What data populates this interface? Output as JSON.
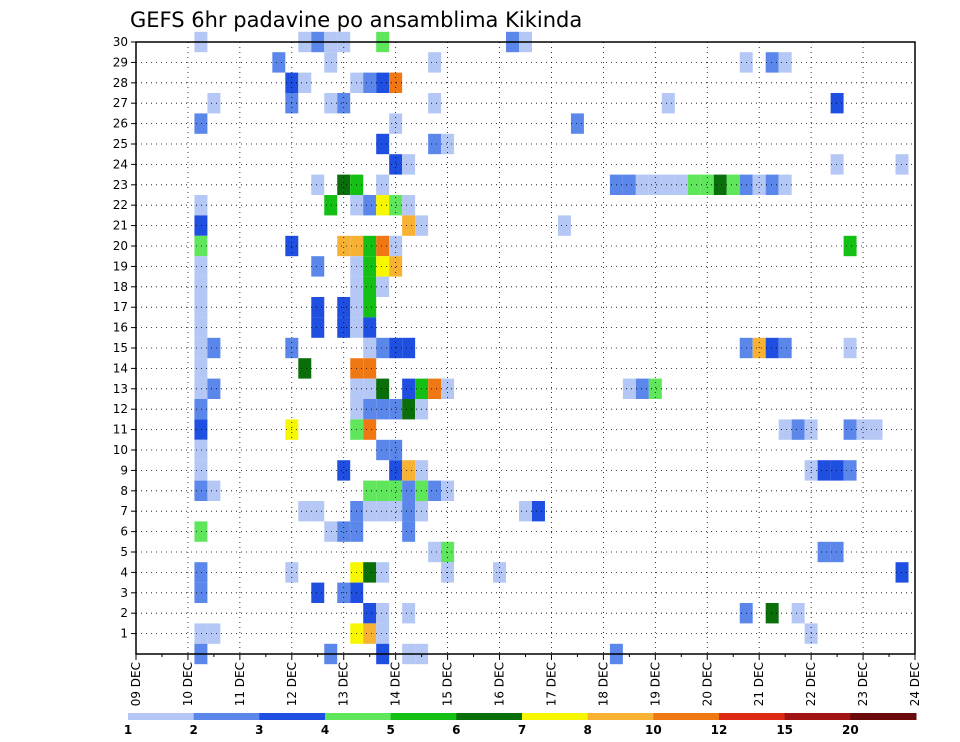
{
  "chart_data": {
    "type": "heatmap",
    "title": "GEFS 6hr padavine po ansamblima Kikinda",
    "xlabel": "",
    "ylabel": "",
    "x_tick_labels": [
      "09 DEC",
      "10 DEC",
      "11 DEC",
      "12 DEC",
      "13 DEC",
      "14 DEC",
      "15 DEC",
      "16 DEC",
      "17 DEC",
      "18 DEC",
      "19 DEC",
      "20 DEC",
      "21 DEC",
      "22 DEC",
      "23 DEC",
      "24 DEC"
    ],
    "xlim": [
      0,
      15
    ],
    "y_tick_labels": [
      "1",
      "2",
      "3",
      "4",
      "5",
      "6",
      "7",
      "8",
      "9",
      "10",
      "11",
      "12",
      "13",
      "14",
      "15",
      "16",
      "17",
      "18",
      "19",
      "20",
      "21",
      "22",
      "23",
      "24",
      "25",
      "26",
      "27",
      "28",
      "29",
      "30"
    ],
    "ylim": [
      0,
      30
    ],
    "grid": true,
    "colorbar": {
      "levels": [
        "1",
        "2",
        "3",
        "4",
        "5",
        "6",
        "7",
        "8",
        "10",
        "12",
        "15",
        "20"
      ],
      "colors": [
        "#b4c7f5",
        "#5b87eb",
        "#1f4fe0",
        "#5fe65a",
        "#14c014",
        "#0a6e0a",
        "#f7f700",
        "#f7b234",
        "#f07814",
        "#dc2a14",
        "#a01414",
        "#6a0a0a"
      ]
    },
    "cells": [
      [
        1.25,
        30,
        1
      ],
      [
        3.25,
        30,
        1
      ],
      [
        3.5,
        30,
        2
      ],
      [
        3.75,
        30,
        1
      ],
      [
        4,
        30,
        1
      ],
      [
        4.75,
        30,
        4
      ],
      [
        7.25,
        30,
        2
      ],
      [
        7.5,
        30,
        1
      ],
      [
        2.75,
        29,
        2
      ],
      [
        3.75,
        29,
        1
      ],
      [
        5.75,
        29,
        1
      ],
      [
        11.75,
        29,
        1
      ],
      [
        12.25,
        29,
        2
      ],
      [
        12.5,
        29,
        1
      ],
      [
        3,
        28,
        3
      ],
      [
        3.25,
        28,
        1
      ],
      [
        4.25,
        28,
        1
      ],
      [
        4.5,
        28,
        2
      ],
      [
        4.75,
        28,
        3
      ],
      [
        5,
        28,
        9
      ],
      [
        1.5,
        27,
        1
      ],
      [
        3,
        27,
        2
      ],
      [
        3.75,
        27,
        1
      ],
      [
        4,
        27,
        2
      ],
      [
        5.75,
        27,
        1
      ],
      [
        10.25,
        27,
        1
      ],
      [
        13.5,
        27,
        3
      ],
      [
        1.25,
        26,
        2
      ],
      [
        5,
        26,
        1
      ],
      [
        8.5,
        26,
        2
      ],
      [
        4.75,
        25,
        3
      ],
      [
        5.75,
        25,
        2
      ],
      [
        6,
        25,
        1
      ],
      [
        5,
        24,
        3
      ],
      [
        5.25,
        24,
        1
      ],
      [
        13.5,
        24,
        1
      ],
      [
        14.75,
        24,
        1
      ],
      [
        3.5,
        23,
        1
      ],
      [
        4,
        23,
        6
      ],
      [
        4.25,
        23,
        5
      ],
      [
        4.75,
        23,
        1
      ],
      [
        9.25,
        23,
        2
      ],
      [
        9.5,
        23,
        2
      ],
      [
        9.75,
        23,
        1
      ],
      [
        10,
        23,
        1
      ],
      [
        10.25,
        23,
        1
      ],
      [
        10.5,
        23,
        1
      ],
      [
        10.75,
        23,
        4
      ],
      [
        11,
        23,
        4
      ],
      [
        11.25,
        23,
        6
      ],
      [
        11.5,
        23,
        4
      ],
      [
        11.75,
        23,
        2
      ],
      [
        12,
        23,
        1
      ],
      [
        12.25,
        23,
        2
      ],
      [
        12.5,
        23,
        1
      ],
      [
        1.25,
        22,
        1
      ],
      [
        3.75,
        22,
        5
      ],
      [
        4.25,
        22,
        1
      ],
      [
        4.5,
        22,
        2
      ],
      [
        4.75,
        22,
        7
      ],
      [
        5,
        22,
        4
      ],
      [
        5.25,
        22,
        1
      ],
      [
        1.25,
        21,
        3
      ],
      [
        5.25,
        21,
        8
      ],
      [
        5.5,
        21,
        1
      ],
      [
        8.25,
        21,
        1
      ],
      [
        1.25,
        20,
        4
      ],
      [
        3,
        20,
        3
      ],
      [
        4,
        20,
        8
      ],
      [
        4.25,
        20,
        8
      ],
      [
        4.5,
        20,
        5
      ],
      [
        4.75,
        20,
        9
      ],
      [
        5,
        20,
        1
      ],
      [
        13.75,
        20,
        5
      ],
      [
        1.25,
        19,
        1
      ],
      [
        3.5,
        19,
        2
      ],
      [
        4.25,
        19,
        1
      ],
      [
        4.5,
        19,
        5
      ],
      [
        4.75,
        19,
        7
      ],
      [
        5,
        19,
        8
      ],
      [
        1.25,
        18,
        1
      ],
      [
        4.25,
        18,
        1
      ],
      [
        4.5,
        18,
        5
      ],
      [
        4.75,
        18,
        1
      ],
      [
        1.25,
        17,
        1
      ],
      [
        3.5,
        17,
        3
      ],
      [
        4,
        17,
        3
      ],
      [
        4.25,
        17,
        1
      ],
      [
        4.5,
        17,
        5
      ],
      [
        1.25,
        16,
        1
      ],
      [
        3.5,
        16,
        3
      ],
      [
        4,
        16,
        3
      ],
      [
        4.25,
        16,
        1
      ],
      [
        4.5,
        16,
        3
      ],
      [
        1.25,
        15,
        1
      ],
      [
        1.5,
        15,
        2
      ],
      [
        3,
        15,
        2
      ],
      [
        4.5,
        15,
        1
      ],
      [
        4.75,
        15,
        2
      ],
      [
        5,
        15,
        3
      ],
      [
        5.25,
        15,
        3
      ],
      [
        11.75,
        15,
        2
      ],
      [
        12,
        15,
        8
      ],
      [
        12.25,
        15,
        3
      ],
      [
        12.5,
        15,
        2
      ],
      [
        13.75,
        15,
        1
      ],
      [
        1.25,
        14,
        1
      ],
      [
        3.25,
        14,
        6
      ],
      [
        4.25,
        14,
        9
      ],
      [
        4.5,
        14,
        9
      ],
      [
        1.25,
        13,
        1
      ],
      [
        1.5,
        13,
        2
      ],
      [
        4.25,
        13,
        1
      ],
      [
        4.5,
        13,
        1
      ],
      [
        4.75,
        13,
        6
      ],
      [
        5.25,
        13,
        3
      ],
      [
        5.5,
        13,
        5
      ],
      [
        5.75,
        13,
        9
      ],
      [
        6,
        13,
        1
      ],
      [
        9.5,
        13,
        1
      ],
      [
        9.75,
        13,
        2
      ],
      [
        10,
        13,
        4
      ],
      [
        1.25,
        12,
        2
      ],
      [
        4.25,
        12,
        1
      ],
      [
        4.5,
        12,
        2
      ],
      [
        4.75,
        12,
        2
      ],
      [
        5,
        12,
        2
      ],
      [
        5.25,
        12,
        6
      ],
      [
        5.5,
        12,
        1
      ],
      [
        1.25,
        11,
        3
      ],
      [
        3,
        11,
        7
      ],
      [
        4.25,
        11,
        4
      ],
      [
        4.5,
        11,
        9
      ],
      [
        12.5,
        11,
        1
      ],
      [
        12.75,
        11,
        2
      ],
      [
        13,
        11,
        1
      ],
      [
        13.75,
        11,
        2
      ],
      [
        14,
        11,
        1
      ],
      [
        14.25,
        11,
        1
      ],
      [
        1.25,
        10,
        1
      ],
      [
        4.75,
        10,
        2
      ],
      [
        5,
        10,
        2
      ],
      [
        1.25,
        9,
        1
      ],
      [
        4,
        9,
        3
      ],
      [
        5,
        9,
        3
      ],
      [
        5.25,
        9,
        8
      ],
      [
        5.5,
        9,
        1
      ],
      [
        13,
        9,
        1
      ],
      [
        13.25,
        9,
        3
      ],
      [
        13.5,
        9,
        3
      ],
      [
        13.75,
        9,
        2
      ],
      [
        1.25,
        8,
        2
      ],
      [
        1.5,
        8,
        1
      ],
      [
        4.5,
        8,
        4
      ],
      [
        4.75,
        8,
        4
      ],
      [
        5,
        8,
        4
      ],
      [
        5.25,
        8,
        2
      ],
      [
        5.5,
        8,
        4
      ],
      [
        5.75,
        8,
        2
      ],
      [
        6,
        8,
        1
      ],
      [
        3.25,
        7,
        1
      ],
      [
        3.5,
        7,
        1
      ],
      [
        4.25,
        7,
        2
      ],
      [
        4.5,
        7,
        1
      ],
      [
        4.75,
        7,
        1
      ],
      [
        5,
        7,
        1
      ],
      [
        5.25,
        7,
        2
      ],
      [
        5.5,
        7,
        1
      ],
      [
        7.5,
        7,
        1
      ],
      [
        7.75,
        7,
        3
      ],
      [
        1.25,
        6,
        4
      ],
      [
        3.75,
        6,
        1
      ],
      [
        4,
        6,
        2
      ],
      [
        4.25,
        6,
        2
      ],
      [
        5.25,
        6,
        2
      ],
      [
        5.75,
        5,
        1
      ],
      [
        6,
        5,
        4
      ],
      [
        13.25,
        5,
        2
      ],
      [
        13.5,
        5,
        2
      ],
      [
        1.25,
        4,
        2
      ],
      [
        3,
        4,
        1
      ],
      [
        4.25,
        4,
        7
      ],
      [
        4.5,
        4,
        6
      ],
      [
        4.75,
        4,
        1
      ],
      [
        6,
        4,
        1
      ],
      [
        7,
        4,
        1
      ],
      [
        14.75,
        4,
        3
      ],
      [
        1.25,
        3,
        2
      ],
      [
        3.5,
        3,
        3
      ],
      [
        4,
        3,
        2
      ],
      [
        4.25,
        3,
        3
      ],
      [
        4.5,
        2,
        3
      ],
      [
        4.75,
        2,
        1
      ],
      [
        5.25,
        2,
        1
      ],
      [
        11.75,
        2,
        2
      ],
      [
        12.25,
        2,
        6
      ],
      [
        12.75,
        2,
        1
      ],
      [
        1.25,
        1,
        1
      ],
      [
        1.5,
        1,
        1
      ],
      [
        4.25,
        1,
        7
      ],
      [
        4.5,
        1,
        8
      ],
      [
        4.75,
        1,
        1
      ],
      [
        13,
        1,
        1
      ],
      [
        1.25,
        0,
        2
      ],
      [
        3.75,
        0,
        2
      ],
      [
        4.75,
        0,
        3
      ],
      [
        5.25,
        0,
        1
      ],
      [
        5.5,
        0,
        1
      ],
      [
        9.25,
        0,
        2
      ]
    ]
  }
}
